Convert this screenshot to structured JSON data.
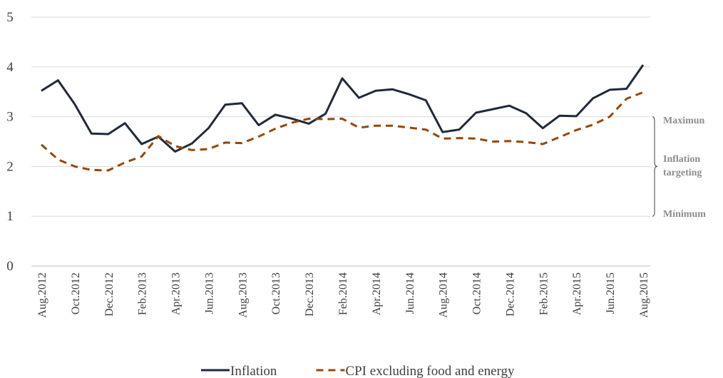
{
  "chart_data": {
    "type": "line",
    "categories": [
      "Aug.2012",
      null,
      "Oct.2012",
      null,
      "Dec.2012",
      null,
      "Feb.2013",
      null,
      "Apr.2013",
      null,
      "Jun.2013",
      null,
      "Aug.2013",
      null,
      "Oct.2013",
      null,
      "Dec.2013",
      null,
      "Feb.2014",
      null,
      "Apr.2014",
      null,
      "Jun.2014",
      null,
      "Aug.2014",
      null,
      "Oct.2014",
      null,
      "Dec.2014",
      null,
      "Feb.2015",
      null,
      "Apr.2015",
      null,
      "Jun.2015",
      null,
      "Aug.2015"
    ],
    "series": [
      {
        "name": "Inflation",
        "color": "#1f2a3a",
        "dash": false,
        "values": [
          3.52,
          3.73,
          3.25,
          2.66,
          2.65,
          2.87,
          2.45,
          2.6,
          2.3,
          2.46,
          2.77,
          3.24,
          3.27,
          2.83,
          3.04,
          2.96,
          2.86,
          3.06,
          3.77,
          3.38,
          3.52,
          3.55,
          3.45,
          3.33,
          2.69,
          2.74,
          3.08,
          3.15,
          3.22,
          3.07,
          2.77,
          3.02,
          3.01,
          3.37,
          3.54,
          3.56,
          4.04
        ]
      },
      {
        "name": "CPI excluding food and energy",
        "color": "#974706",
        "dash": true,
        "values": [
          2.44,
          2.14,
          2.0,
          1.93,
          1.92,
          2.08,
          2.2,
          2.61,
          2.41,
          2.33,
          2.35,
          2.48,
          2.47,
          2.6,
          2.76,
          2.88,
          2.96,
          2.95,
          2.96,
          2.78,
          2.82,
          2.82,
          2.78,
          2.74,
          2.56,
          2.57,
          2.56,
          2.5,
          2.51,
          2.49,
          2.45,
          2.59,
          2.73,
          2.84,
          3.0,
          3.36,
          3.49
        ]
      }
    ],
    "ylim": [
      0,
      5
    ],
    "yticks": [
      0,
      1,
      2,
      3,
      4,
      5
    ],
    "grid": true,
    "legend": "bottom",
    "annotations": [
      {
        "text": "Maximun",
        "value": 3
      },
      {
        "text": "Inflation targeting",
        "value": 2
      },
      {
        "text": "Mínimum",
        "value": 1
      }
    ]
  }
}
